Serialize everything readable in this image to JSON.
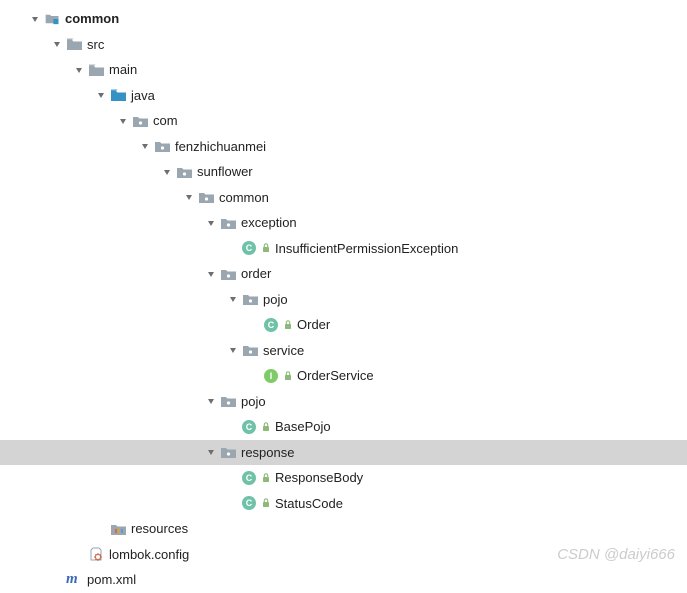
{
  "tree": {
    "indent_unit": 22,
    "base_padding": 28,
    "row_height": 25.5,
    "selected_bg_color": "#d4d4d4",
    "arrow_color": "#6e6e6e",
    "folder_gray_color": "#9aa7b0",
    "folder_blue_color": "#3592c4",
    "package_dot_color": "#9aa7b0",
    "class_badge_bg": "#6fc2a7",
    "interface_badge_bg": "#7fcb68",
    "lock_color": "#8fb979",
    "nodes": [
      {
        "depth": 0,
        "expanded": true,
        "icon": "module",
        "label": "common",
        "bold": true
      },
      {
        "depth": 1,
        "expanded": true,
        "icon": "folder-gray",
        "label": "src"
      },
      {
        "depth": 2,
        "expanded": true,
        "icon": "folder-gray",
        "label": "main"
      },
      {
        "depth": 3,
        "expanded": true,
        "icon": "folder-blue",
        "label": "java"
      },
      {
        "depth": 4,
        "expanded": true,
        "icon": "package",
        "label": "com"
      },
      {
        "depth": 5,
        "expanded": true,
        "icon": "package",
        "label": "fenzhichuanmei"
      },
      {
        "depth": 6,
        "expanded": true,
        "icon": "package",
        "label": "sunflower"
      },
      {
        "depth": 7,
        "expanded": true,
        "icon": "package",
        "label": "common"
      },
      {
        "depth": 8,
        "expanded": true,
        "icon": "package",
        "label": "exception"
      },
      {
        "depth": 9,
        "icon": "class",
        "lock": true,
        "label": "InsufficientPermissionException"
      },
      {
        "depth": 8,
        "expanded": true,
        "icon": "package",
        "label": "order"
      },
      {
        "depth": 9,
        "expanded": true,
        "icon": "package",
        "label": "pojo"
      },
      {
        "depth": 10,
        "icon": "class",
        "lock": true,
        "label": "Order"
      },
      {
        "depth": 9,
        "expanded": true,
        "icon": "package",
        "label": "service"
      },
      {
        "depth": 10,
        "icon": "interface",
        "lock": true,
        "label": "OrderService"
      },
      {
        "depth": 8,
        "expanded": true,
        "icon": "package",
        "label": "pojo"
      },
      {
        "depth": 9,
        "icon": "class",
        "lock": true,
        "label": "BasePojo"
      },
      {
        "depth": 8,
        "expanded": true,
        "icon": "package",
        "label": "response",
        "selected": true
      },
      {
        "depth": 9,
        "icon": "class",
        "lock": true,
        "label": "ResponseBody"
      },
      {
        "depth": 9,
        "icon": "class",
        "lock": true,
        "label": "StatusCode"
      },
      {
        "depth": 3,
        "icon": "resources",
        "label": "resources"
      },
      {
        "depth": 2,
        "icon": "config",
        "label": "lombok.config"
      },
      {
        "depth": 1,
        "icon": "maven",
        "label": "pom.xml"
      }
    ]
  },
  "watermark": "CSDN @daiyi666"
}
